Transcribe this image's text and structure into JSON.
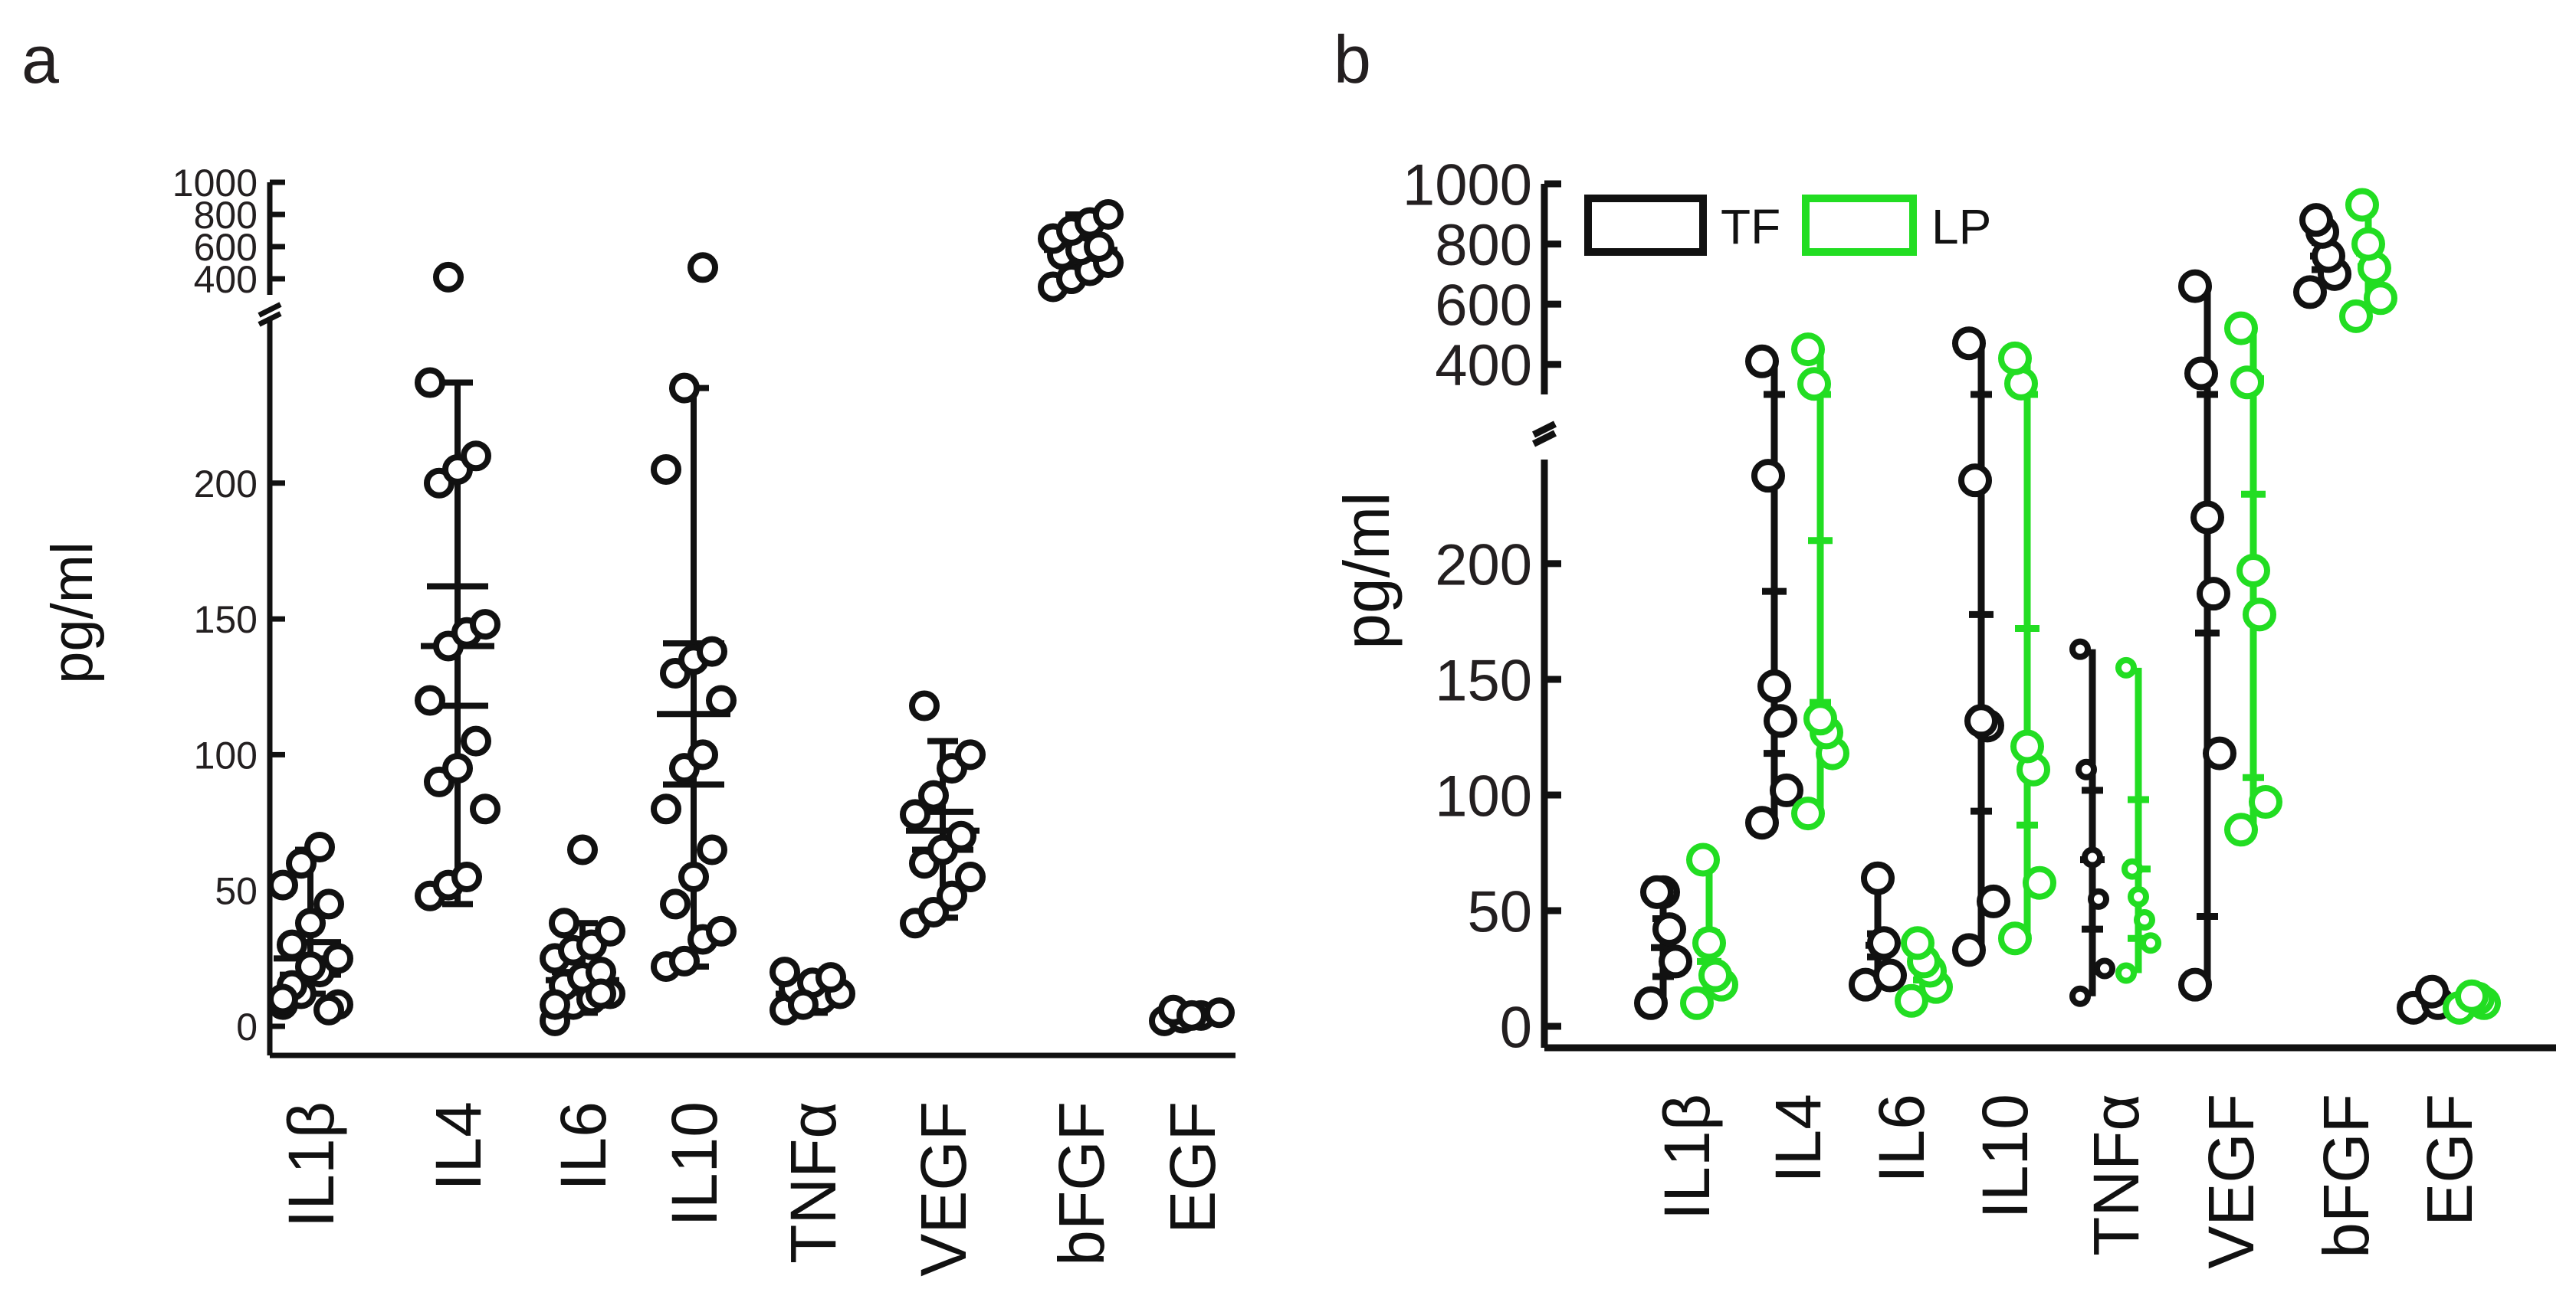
{
  "figure": {
    "panel_a_label": "a",
    "panel_b_label": "b",
    "colors": {
      "TF": "#111111",
      "LP": "#22dd22",
      "axis": "#111111"
    }
  },
  "chart_data": [
    {
      "type": "scatter",
      "title": "",
      "panel": "a",
      "ylabel": "pg/ml",
      "categories": [
        "IL1β",
        "IL4",
        "IL6",
        "IL10",
        "TNFα",
        "VEGF",
        "bFGF",
        "EGF"
      ],
      "y_axis": {
        "lower": {
          "range": [
            0,
            260
          ],
          "ticks": [
            0,
            50,
            100,
            150,
            200
          ]
        },
        "upper": {
          "range": [
            300,
            1000
          ],
          "ticks": [
            400,
            600,
            800,
            1000
          ]
        },
        "break": true
      },
      "points": [
        [
          8,
          12,
          20,
          25,
          30,
          38,
          45,
          52,
          60,
          66,
          8,
          15,
          22,
          6,
          10
        ],
        [
          48,
          52,
          55,
          80,
          90,
          95,
          105,
          120,
          140,
          145,
          148,
          200,
          205,
          210,
          237,
          410
        ],
        [
          2,
          8,
          10,
          12,
          15,
          18,
          20,
          25,
          28,
          30,
          35,
          38,
          65,
          12,
          8
        ],
        [
          22,
          24,
          32,
          35,
          45,
          55,
          65,
          80,
          95,
          100,
          120,
          130,
          135,
          138,
          205,
          235,
          470
        ],
        [
          6,
          8,
          10,
          12,
          14,
          16,
          18,
          20,
          8
        ],
        [
          38,
          42,
          48,
          55,
          60,
          65,
          70,
          78,
          85,
          95,
          100,
          118
        ],
        [
          350,
          400,
          450,
          500,
          550,
          580,
          600,
          650,
          700,
          750,
          800
        ],
        [
          2,
          3,
          4,
          5,
          6,
          4
        ]
      ],
      "mean": [
        25,
        140,
        17,
        115,
        12,
        72,
        580,
        4
      ],
      "sem": [
        6,
        22,
        3,
        26,
        2,
        7,
        30,
        1
      ],
      "sd": [
        20,
        96,
        14,
        120,
        5,
        30,
        140,
        2
      ],
      "error_bars": [
        [
          12,
          65
        ],
        [
          45,
          237
        ],
        [
          5,
          38
        ],
        [
          22,
          235
        ],
        [
          5,
          18
        ],
        [
          40,
          105
        ],
        [
          400,
          800
        ],
        [
          2,
          6
        ]
      ]
    },
    {
      "type": "scatter",
      "title": "",
      "panel": "b",
      "ylabel": "pg/ml",
      "categories": [
        "IL1β",
        "IL4",
        "IL6",
        "IL10",
        "TNFα",
        "VEGF",
        "bFGF",
        "EGF"
      ],
      "y_axis": {
        "lower": {
          "range": [
            0,
            245
          ],
          "ticks": [
            0,
            50,
            100,
            150,
            200
          ]
        },
        "upper": {
          "range": [
            300,
            1000
          ],
          "ticks": [
            400,
            600,
            800,
            1000
          ]
        },
        "break": true
      },
      "legend": {
        "entries": [
          "TF",
          "LP"
        ],
        "placement": "top-left"
      },
      "series": [
        {
          "name": "TF",
          "points": [
            [
              10,
              28,
              42,
              58,
              58
            ],
            [
              88,
              102,
              132,
              147,
              238,
              410
            ],
            [
              18,
              22,
              36,
              64
            ],
            [
              33,
              54,
              130,
              132,
              236,
              470
            ],
            [
              13,
              25,
              55,
              73,
              111,
              163
            ],
            [
              18,
              118,
              187,
              220,
              370,
              660
            ],
            [
              640,
              700,
              760,
              840,
              880
            ],
            [
              8,
              10,
              15
            ]
          ],
          "mean": [
            34,
            188,
            35,
            178,
            72,
            170,
            760,
            11
          ],
          "range": [
            [
              10,
              58
            ],
            [
              88,
              410
            ],
            [
              18,
              64
            ],
            [
              33,
              470
            ],
            [
              13,
              163
            ],
            [
              18,
              660
            ],
            [
              640,
              880
            ],
            [
              8,
              15
            ]
          ],
          "sd": [
            25,
            140,
            10,
            170,
            60,
            245,
            90,
            4
          ]
        },
        {
          "name": "LP",
          "points": [
            [
              10,
              18,
              22,
              36,
              72
            ],
            [
              92,
              118,
              127,
              133,
              335,
              450
            ],
            [
              11,
              17,
              24,
              28,
              36
            ],
            [
              38,
              62,
              111,
              121,
              336,
              420
            ],
            [
              23,
              36,
              46,
              56,
              68,
              155
            ],
            [
              85,
              97,
              178,
              197,
              340,
              520
            ],
            [
              560,
              620,
              720,
              800,
              930
            ],
            [
              8,
              10,
              12,
              13
            ]
          ],
          "mean": [
            28,
            210,
            25,
            172,
            68,
            230,
            770,
            11
          ],
          "range": [
            [
              10,
              72
            ],
            [
              92,
              450
            ],
            [
              11,
              36
            ],
            [
              38,
              420
            ],
            [
              23,
              155
            ],
            [
              85,
              520
            ],
            [
              560,
              930
            ],
            [
              8,
              13
            ]
          ],
          "sd": [
            25,
            140,
            10,
            170,
            60,
            245,
            90,
            4
          ]
        }
      ]
    }
  ]
}
